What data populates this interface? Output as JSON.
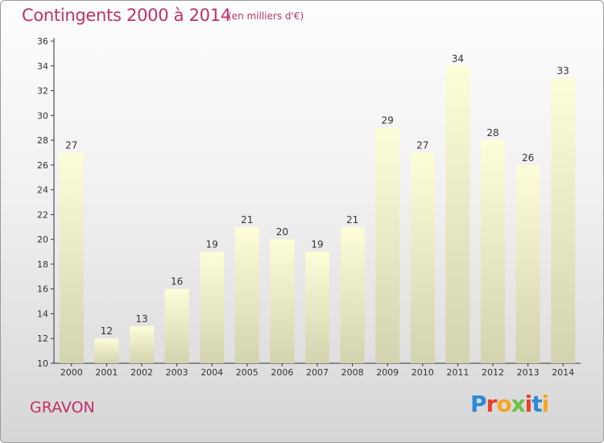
{
  "header": {
    "title": "Contingents 2000 à 2014",
    "subtitle": "(en milliers d'€)"
  },
  "footer": {
    "town": "GRAVON",
    "logo_letters": [
      "P",
      "r",
      "o",
      "x",
      "i",
      "t",
      "i"
    ],
    "logo_colors": [
      "#2a8ad6",
      "#e8402a",
      "#f5a623",
      "#6cc04a",
      "#e8402a",
      "#2a8ad6",
      "#f5a623"
    ]
  },
  "colors": {
    "title": "#c0306a",
    "bar_top": "#fdfdd8",
    "bar_bottom": "#d3d3b0",
    "axis": "#333333",
    "grid": "#cccccc"
  },
  "chart_data": {
    "type": "bar",
    "title": "Contingents 2000 à 2014",
    "subtitle": "(en milliers d'€)",
    "categories": [
      "2000",
      "2001",
      "2002",
      "2003",
      "2004",
      "2005",
      "2006",
      "2007",
      "2008",
      "2009",
      "2010",
      "2011",
      "2012",
      "2013",
      "2014"
    ],
    "values": [
      27,
      12,
      13,
      16,
      19,
      21,
      20,
      19,
      21,
      29,
      27,
      34,
      28,
      26,
      33
    ],
    "ylim": [
      10,
      36
    ],
    "yticks": [
      10,
      12,
      14,
      16,
      18,
      20,
      22,
      24,
      26,
      28,
      30,
      32,
      34,
      36
    ],
    "grid": false,
    "xlabel": "",
    "ylabel": ""
  }
}
